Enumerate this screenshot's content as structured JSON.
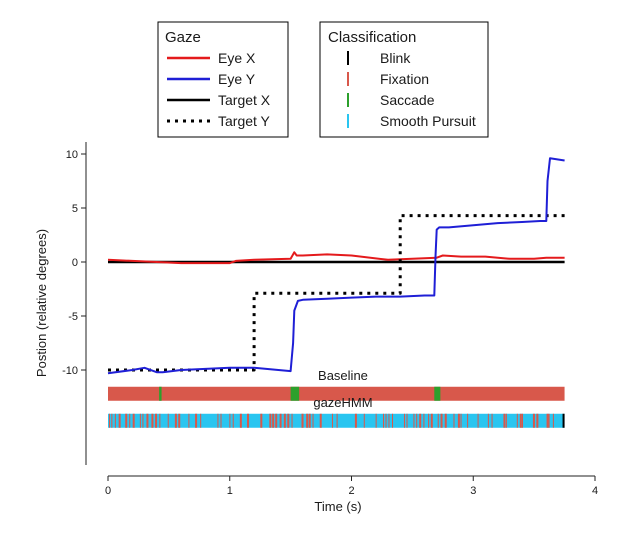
{
  "chart_data": {
    "type": "line",
    "xlabel": "Time (s)",
    "ylabel": "Postion (relative degrees)",
    "xlim": [
      0,
      4
    ],
    "ylim": [
      -15.5,
      11
    ],
    "xticks": [
      0,
      1,
      2,
      3,
      4
    ],
    "yticks": [
      -10,
      -5,
      0,
      5,
      10
    ],
    "x_end": 3.75,
    "grid": false,
    "gaze_legend": {
      "title": "Gaze",
      "position": "top-left",
      "entries": [
        {
          "label": "Eye X",
          "color": "#e41a1c",
          "style": "solid"
        },
        {
          "label": "Eye Y",
          "color": "#1f1fd6",
          "style": "solid"
        },
        {
          "label": "Target X",
          "color": "#000000",
          "style": "solid"
        },
        {
          "label": "Target Y",
          "color": "#000000",
          "style": "dotted"
        }
      ]
    },
    "class_legend": {
      "title": "Classification",
      "position": "top-right",
      "entries": [
        {
          "label": "Blink",
          "color": "#000000"
        },
        {
          "label": "Fixation",
          "color": "#d8584b"
        },
        {
          "label": "Saccade",
          "color": "#2ca02c"
        },
        {
          "label": "Smooth Pursuit",
          "color": "#29c5f0"
        }
      ]
    },
    "series": [
      {
        "name": "Eye X",
        "color": "#e41a1c",
        "x": [
          0,
          0.2,
          0.4,
          0.6,
          0.8,
          1.0,
          1.05,
          1.2,
          1.5,
          1.53,
          1.55,
          1.6,
          1.8,
          2.0,
          2.3,
          2.5,
          2.7,
          2.75,
          2.9,
          3.0,
          3.1,
          3.3,
          3.5,
          3.6,
          3.75
        ],
        "y": [
          0.2,
          0.1,
          0.0,
          -0.1,
          -0.1,
          -0.1,
          0.1,
          0.2,
          0.3,
          0.9,
          0.6,
          0.6,
          0.7,
          0.6,
          0.2,
          0.3,
          0.4,
          0.6,
          0.5,
          0.5,
          0.5,
          0.3,
          0.3,
          0.4,
          0.4
        ]
      },
      {
        "name": "Eye Y",
        "color": "#1f1fd6",
        "x": [
          0,
          0.2,
          0.3,
          0.4,
          0.45,
          0.6,
          0.8,
          1.0,
          1.2,
          1.4,
          1.5,
          1.52,
          1.53,
          1.56,
          1.6,
          1.8,
          2.0,
          2.2,
          2.4,
          2.6,
          2.68,
          2.69,
          2.7,
          2.72,
          2.8,
          3.0,
          3.2,
          3.4,
          3.55,
          3.6,
          3.61,
          3.63,
          3.75
        ],
        "y": [
          -10.3,
          -10.0,
          -9.8,
          -10.2,
          -10.2,
          -10.0,
          -9.9,
          -9.8,
          -9.8,
          -10.0,
          -10.1,
          -7.5,
          -4.5,
          -3.6,
          -3.5,
          -3.4,
          -3.3,
          -3.2,
          -3.2,
          -3.1,
          -3.1,
          0.5,
          3.0,
          3.2,
          3.2,
          3.4,
          3.6,
          3.7,
          3.8,
          3.8,
          7.5,
          9.6,
          9.4
        ]
      },
      {
        "name": "Target X",
        "color": "#000000",
        "x": [
          0,
          3.75
        ],
        "y": [
          0,
          0
        ]
      },
      {
        "name": "Target Y",
        "color": "#000000",
        "x": [
          0,
          1.2,
          1.2,
          2.4,
          2.4,
          3.75
        ],
        "y": [
          -10,
          -10,
          -2.9,
          -2.9,
          4.3,
          4.3
        ]
      }
    ],
    "classification_tracks": [
      {
        "label": "Baseline",
        "y_center": -12.2,
        "background": "Fixation",
        "events": [
          {
            "start": 0.42,
            "end": 0.44,
            "class": "Saccade"
          },
          {
            "start": 1.5,
            "end": 1.57,
            "class": "Saccade"
          },
          {
            "start": 2.68,
            "end": 2.73,
            "class": "Saccade"
          }
        ]
      },
      {
        "label": "gazeHMM",
        "y_center": -14.7,
        "background": "Smooth Pursuit",
        "stripe_pattern": "dense alternating Fixation / Smooth Pursuit",
        "end_marker": "Blink"
      }
    ]
  }
}
